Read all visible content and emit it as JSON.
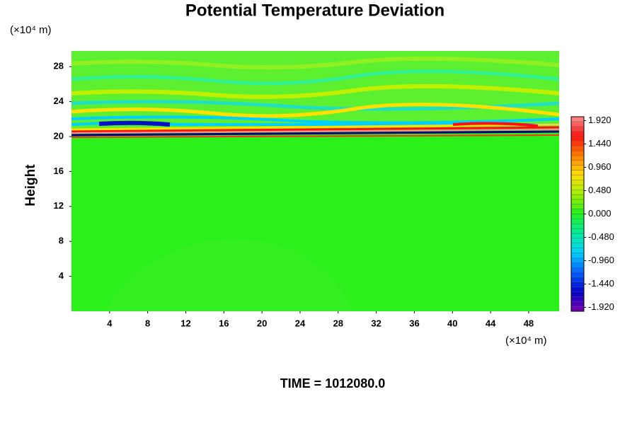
{
  "chart_data": {
    "type": "heatmap",
    "title": "Potential Temperature Deviation",
    "ylabel": "Height",
    "y_unit": "(×10⁴ m)",
    "x_unit": "(×10⁴ m)",
    "xlim": [
      0,
      51.2
    ],
    "xticks": [
      4,
      8,
      12,
      16,
      20,
      24,
      28,
      32,
      36,
      40,
      44,
      48
    ],
    "ylim": [
      0,
      29.8
    ],
    "yticks": [
      4,
      8,
      12,
      16,
      20,
      24,
      28
    ],
    "clim": [
      -2.0,
      2.0
    ],
    "cticks": [
      {
        "value": 1.92,
        "label": "1.920"
      },
      {
        "value": 1.44,
        "label": "1.440"
      },
      {
        "value": 0.96,
        "label": "0.960"
      },
      {
        "value": 0.48,
        "label": "0.480"
      },
      {
        "value": 0.0,
        "label": "0.000"
      },
      {
        "value": -0.48,
        "label": "-0.480"
      },
      {
        "value": -0.96,
        "label": "-0.960"
      },
      {
        "value": -1.44,
        "label": "-1.440"
      },
      {
        "value": -1.92,
        "label": "-1.920"
      }
    ],
    "colormap": [
      "#7a00b0",
      "#0000c8",
      "#0060ff",
      "#00d0ff",
      "#00f0a0",
      "#20f020",
      "#a0f000",
      "#ffe000",
      "#ff8000",
      "#ff1010",
      "#ff9090"
    ],
    "footer": "TIME = 1012080.0"
  }
}
